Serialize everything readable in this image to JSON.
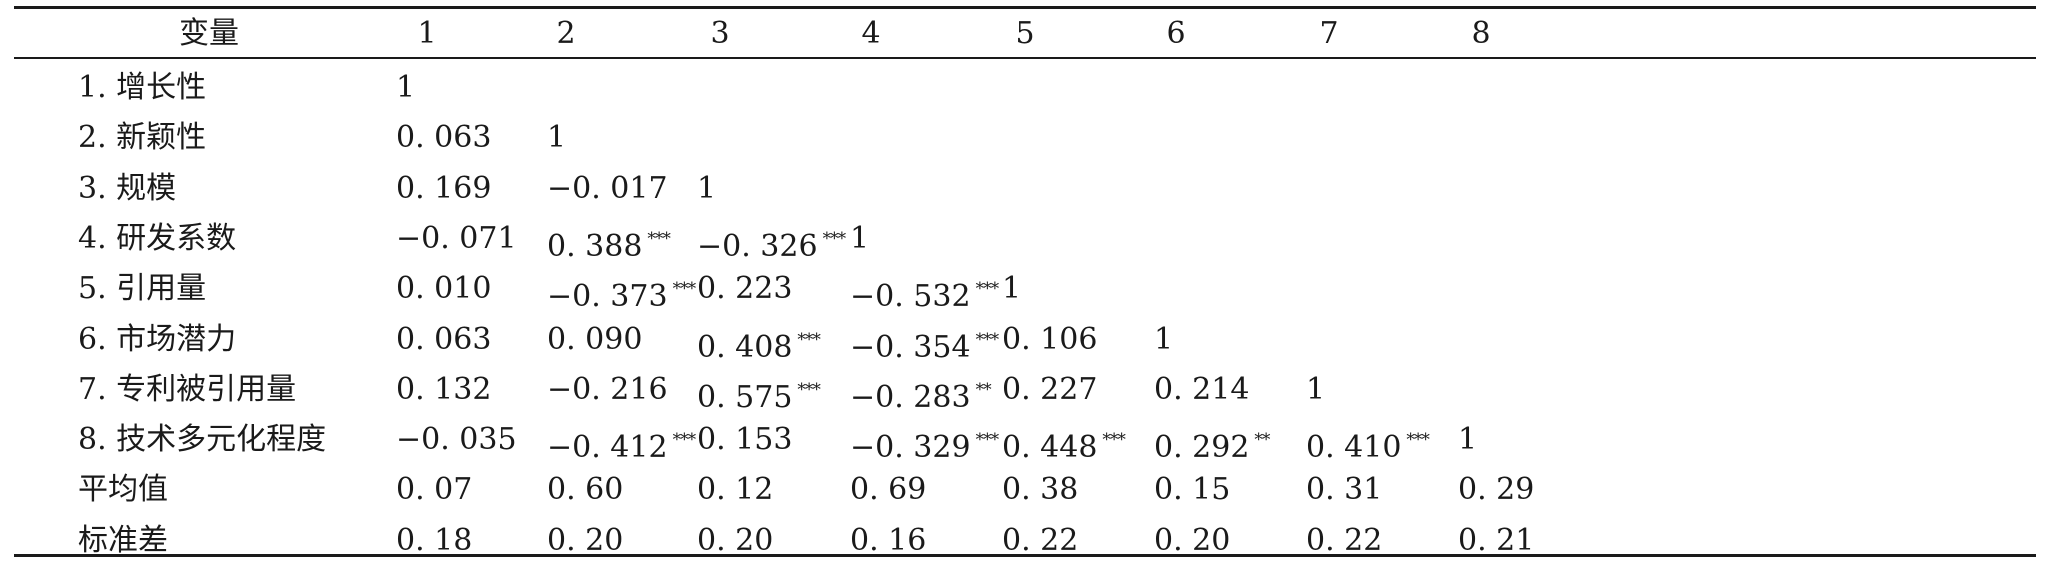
{
  "table": {
    "headers": [
      "变量",
      "1",
      "2",
      "3",
      "4",
      "5",
      "6",
      "7",
      "8"
    ],
    "rows": [
      {
        "label": "1. 增长性",
        "cells": [
          {
            "v": "1",
            "s": ""
          },
          null,
          null,
          null,
          null,
          null,
          null,
          null
        ]
      },
      {
        "label": "2. 新颖性",
        "cells": [
          {
            "v": "0. 063",
            "s": ""
          },
          {
            "v": "1",
            "s": ""
          },
          null,
          null,
          null,
          null,
          null,
          null
        ]
      },
      {
        "label": "3. 规模",
        "cells": [
          {
            "v": "0. 169",
            "s": ""
          },
          {
            "v": "−0. 017",
            "s": ""
          },
          {
            "v": "1",
            "s": ""
          },
          null,
          null,
          null,
          null,
          null
        ]
      },
      {
        "label": "4. 研发系数",
        "cells": [
          {
            "v": "−0. 071",
            "s": ""
          },
          {
            "v": "0. 388",
            "s": "***"
          },
          {
            "v": "−0. 326",
            "s": "***"
          },
          {
            "v": "1",
            "s": ""
          },
          null,
          null,
          null,
          null
        ]
      },
      {
        "label": "5. 引用量",
        "cells": [
          {
            "v": "0. 010",
            "s": ""
          },
          {
            "v": "−0. 373",
            "s": "***"
          },
          {
            "v": "0. 223",
            "s": ""
          },
          {
            "v": "−0. 532",
            "s": "***"
          },
          {
            "v": "1",
            "s": ""
          },
          null,
          null,
          null
        ]
      },
      {
        "label": "6. 市场潜力",
        "cells": [
          {
            "v": "0. 063",
            "s": ""
          },
          {
            "v": "0. 090",
            "s": ""
          },
          {
            "v": "0. 408",
            "s": "***"
          },
          {
            "v": "−0. 354",
            "s": "***"
          },
          {
            "v": "0. 106",
            "s": ""
          },
          {
            "v": "1",
            "s": ""
          },
          null,
          null
        ]
      },
      {
        "label": "7. 专利被引用量",
        "cells": [
          {
            "v": "0. 132",
            "s": ""
          },
          {
            "v": "−0. 216",
            "s": ""
          },
          {
            "v": "0. 575",
            "s": "***"
          },
          {
            "v": "−0. 283",
            "s": "**"
          },
          {
            "v": "0. 227",
            "s": ""
          },
          {
            "v": "0. 214",
            "s": ""
          },
          {
            "v": "1",
            "s": ""
          },
          null
        ]
      },
      {
        "label": "8. 技术多元化程度",
        "cells": [
          {
            "v": "−0. 035",
            "s": ""
          },
          {
            "v": "−0. 412",
            "s": "***"
          },
          {
            "v": "0. 153",
            "s": ""
          },
          {
            "v": "−0. 329",
            "s": "***"
          },
          {
            "v": "0. 448",
            "s": "***"
          },
          {
            "v": "0. 292",
            "s": "**"
          },
          {
            "v": "0. 410",
            "s": "***"
          },
          {
            "v": "1",
            "s": ""
          }
        ]
      },
      {
        "label": "平均值",
        "cells": [
          {
            "v": "0. 07",
            "s": ""
          },
          {
            "v": "0. 60",
            "s": ""
          },
          {
            "v": "0. 12",
            "s": ""
          },
          {
            "v": "0. 69",
            "s": ""
          },
          {
            "v": "0. 38",
            "s": ""
          },
          {
            "v": "0. 15",
            "s": ""
          },
          {
            "v": "0. 31",
            "s": ""
          },
          {
            "v": "0. 29",
            "s": ""
          }
        ]
      },
      {
        "label": "标准差",
        "cells": [
          {
            "v": "0. 18",
            "s": ""
          },
          {
            "v": "0. 20",
            "s": ""
          },
          {
            "v": "0. 20",
            "s": ""
          },
          {
            "v": "0. 16",
            "s": ""
          },
          {
            "v": "0. 22",
            "s": ""
          },
          {
            "v": "0. 20",
            "s": ""
          },
          {
            "v": "0. 22",
            "s": ""
          },
          {
            "v": "0. 21",
            "s": ""
          }
        ]
      }
    ]
  }
}
